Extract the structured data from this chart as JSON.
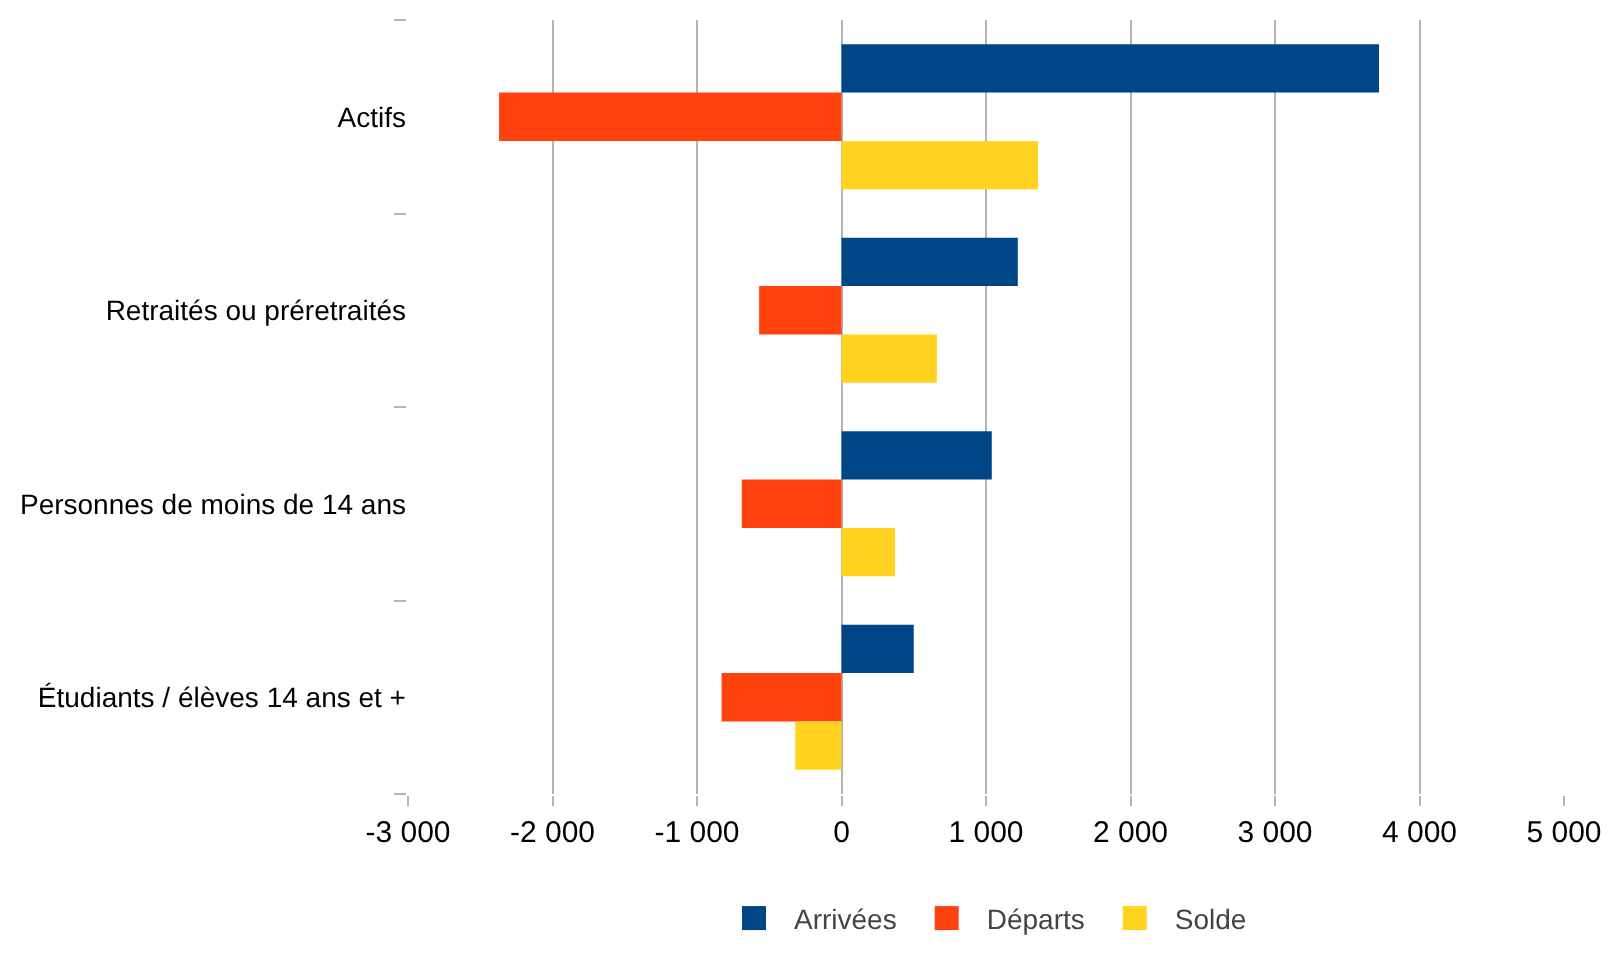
{
  "chart_data": {
    "type": "bar",
    "orientation": "horizontal",
    "categories": [
      "Actifs",
      "Retraités ou préretraités",
      "Personnes de moins de 14 ans",
      "Étudiants / élèves 14 ans et +"
    ],
    "series": [
      {
        "name": "Arrivées",
        "color": "#004586",
        "values": [
          3720,
          1220,
          1040,
          500
        ]
      },
      {
        "name": "Départs",
        "color": "#ff420e",
        "values": [
          -2370,
          -570,
          -690,
          -830
        ]
      },
      {
        "name": "Solde",
        "color": "#ffd320",
        "values": [
          1360,
          660,
          370,
          -320
        ]
      }
    ],
    "xlim": [
      -3000,
      5000
    ],
    "xticks": [
      {
        "value": -3000,
        "label": "-3 000"
      },
      {
        "value": -2000,
        "label": "-2 000"
      },
      {
        "value": -1000,
        "label": "-1 000"
      },
      0,
      {
        "value": 1000,
        "label": "1 000"
      },
      {
        "value": 2000,
        "label": "2 000"
      },
      {
        "value": 3000,
        "label": "3 000"
      },
      {
        "value": 4000,
        "label": "4 000"
      },
      {
        "value": 5000,
        "label": "5 000"
      }
    ],
    "grid": "x",
    "legend": "bottom"
  }
}
